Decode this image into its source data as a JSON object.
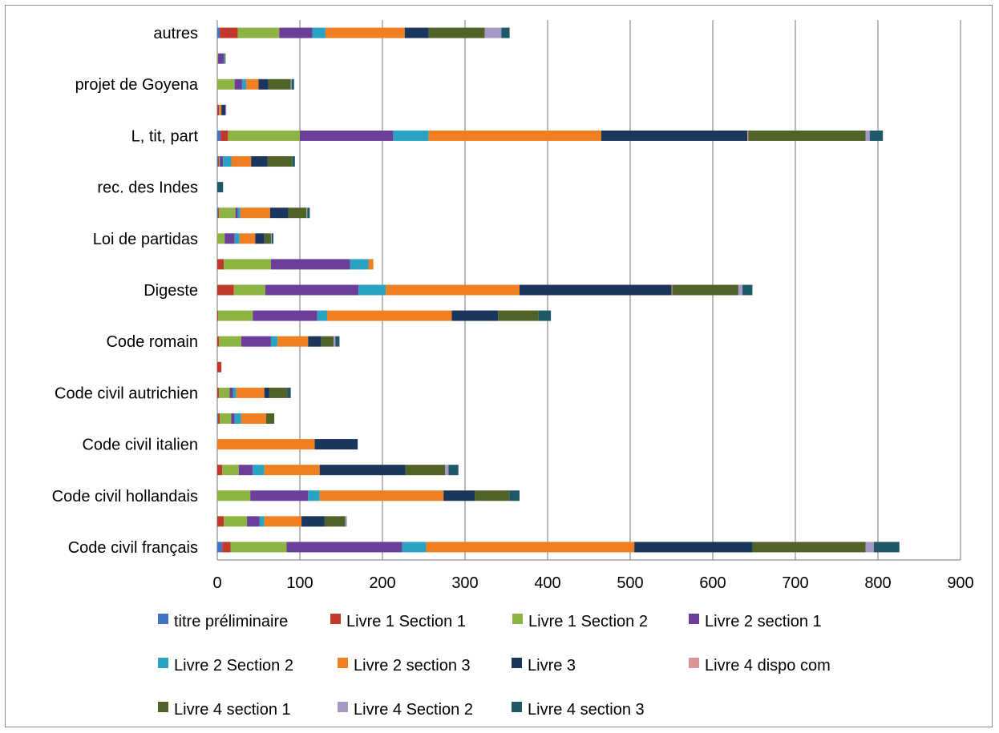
{
  "chart_data": {
    "type": "bar",
    "orientation": "horizontal",
    "stacked": true,
    "title": "",
    "xlabel": "",
    "ylabel": "",
    "xlim": [
      0,
      900
    ],
    "xticks": [
      0,
      100,
      200,
      300,
      400,
      500,
      600,
      700,
      800,
      900
    ],
    "grid": "vertical",
    "legend_position": "bottom",
    "category_labels": [
      "Code civil français",
      "",
      "Code civil hollandais",
      "",
      "Code civil italien",
      "",
      "Code civil autrichien",
      "",
      "Code romain",
      "",
      "Digeste",
      "",
      "Loi de partidas",
      "",
      "rec. des Indes",
      "",
      "L, tit, part",
      "",
      "projet de Goyena",
      "",
      "autres"
    ],
    "colors": [
      "#4472C4",
      "#C0392B",
      "#8DB443",
      "#6B3F99",
      "#2AA2C1",
      "#F07F22",
      "#1B365D",
      "#D99694",
      "#4F6228",
      "#A699C6",
      "#215868"
    ],
    "series": [
      {
        "name": "titre préliminaire",
        "values": [
          6,
          0,
          0,
          0,
          0,
          1,
          0,
          0,
          0,
          0,
          0,
          0,
          0,
          1,
          0,
          1,
          4,
          0,
          0,
          0,
          3
        ]
      },
      {
        "name": "Livre 1 Section 1",
        "values": [
          10,
          8,
          0,
          6,
          0,
          2,
          2,
          5,
          2,
          1,
          20,
          8,
          0,
          1,
          0,
          1,
          9,
          1,
          0,
          0,
          22
        ]
      },
      {
        "name": "Livre 1 Section 2",
        "values": [
          68,
          28,
          40,
          20,
          0,
          14,
          13,
          0,
          27,
          42,
          38,
          57,
          9,
          20,
          0,
          1,
          87,
          0,
          21,
          1,
          50
        ]
      },
      {
        "name": "Livre 2 section 1",
        "values": [
          140,
          15,
          70,
          17,
          0,
          4,
          4,
          0,
          36,
          78,
          113,
          96,
          12,
          3,
          0,
          4,
          113,
          1,
          9,
          7,
          40
        ]
      },
      {
        "name": "Livre 2 Section 2",
        "values": [
          29,
          6,
          14,
          14,
          0,
          8,
          4,
          0,
          8,
          12,
          33,
          22,
          6,
          3,
          0,
          10,
          43,
          0,
          5,
          1,
          16
        ]
      },
      {
        "name": "Livre 2 section 3",
        "values": [
          252,
          45,
          150,
          67,
          118,
          30,
          34,
          0,
          37,
          151,
          162,
          6,
          19,
          36,
          0,
          24,
          209,
          3,
          15,
          0,
          96
        ]
      },
      {
        "name": "Livre 3",
        "values": [
          143,
          28,
          38,
          104,
          52,
          0,
          6,
          0,
          16,
          56,
          184,
          0,
          11,
          22,
          0,
          20,
          177,
          5,
          12,
          0,
          29
        ]
      },
      {
        "name": "Livre 4 dispo com",
        "values": [
          0,
          0,
          0,
          0,
          0,
          0,
          0,
          0,
          0,
          0,
          1,
          0,
          0,
          0,
          0,
          0,
          1,
          0,
          0,
          0,
          0
        ]
      },
      {
        "name": "Livre 4 section 1",
        "values": [
          137,
          25,
          42,
          48,
          0,
          10,
          22,
          0,
          15,
          49,
          80,
          0,
          8,
          22,
          0,
          30,
          142,
          0,
          27,
          1,
          68
        ]
      },
      {
        "name": "Livre 4 Section 2",
        "values": [
          10,
          2,
          0,
          4,
          0,
          0,
          0,
          0,
          2,
          0,
          5,
          0,
          1,
          1,
          0,
          0,
          5,
          1,
          1,
          0,
          20
        ]
      },
      {
        "name": "Livre 4 section 3",
        "values": [
          31,
          0,
          12,
          12,
          0,
          0,
          4,
          0,
          5,
          15,
          12,
          0,
          2,
          3,
          7,
          3,
          16,
          0,
          3,
          0,
          10
        ]
      }
    ]
  }
}
